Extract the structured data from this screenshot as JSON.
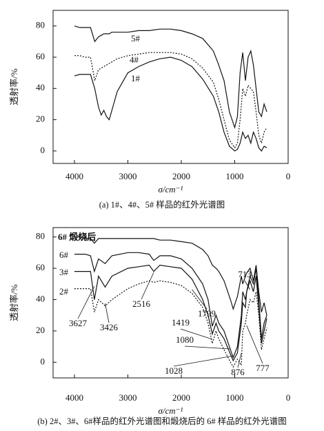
{
  "chart_data": [
    {
      "type": "line",
      "title": "(a) 1#、4#、5# 样品的红外光谱图",
      "x_label": "σ/cm⁻¹",
      "y_label": "透射率/%",
      "xlim": [
        4400,
        0
      ],
      "ylim": [
        -8,
        90
      ],
      "xticks": [
        4000,
        3000,
        2000,
        1000,
        0
      ],
      "yticks": [
        0,
        20,
        40,
        60,
        80
      ],
      "x": [
        4000,
        3900,
        3800,
        3700,
        3620,
        3550,
        3500,
        3450,
        3400,
        3350,
        3300,
        3200,
        3000,
        2800,
        2600,
        2400,
        2200,
        2000,
        1800,
        1600,
        1400,
        1300,
        1200,
        1100,
        1000,
        950,
        900,
        850,
        800,
        750,
        700,
        650,
        600,
        550,
        500,
        450,
        400
      ],
      "series": [
        {
          "name": "5#",
          "color": "#111111",
          "dash": false,
          "values": [
            80,
            79,
            79,
            79,
            70,
            73,
            74,
            75,
            75,
            75,
            76,
            76,
            76,
            77,
            77,
            78,
            78,
            77,
            75,
            72,
            64,
            55,
            45,
            25,
            15,
            22,
            50,
            63,
            45,
            60,
            64,
            55,
            40,
            25,
            22,
            30,
            25
          ]
        },
        {
          "name": "4#",
          "color": "#111111",
          "dash": true,
          "values": [
            61,
            61,
            60,
            60,
            45,
            52,
            53,
            54,
            55,
            56,
            57,
            59,
            61,
            62,
            63,
            63,
            63,
            62,
            59,
            53,
            44,
            33,
            20,
            7,
            2,
            5,
            20,
            40,
            35,
            42,
            40,
            38,
            25,
            10,
            5,
            12,
            15
          ]
        },
        {
          "name": "1#",
          "color": "#111111",
          "dash": false,
          "values": [
            48,
            49,
            49,
            49,
            40,
            28,
            23,
            26,
            22,
            20,
            26,
            38,
            50,
            54,
            57,
            59,
            60,
            58,
            54,
            46,
            35,
            25,
            12,
            3,
            0,
            1,
            5,
            12,
            8,
            10,
            5,
            12,
            8,
            2,
            0,
            3,
            2
          ]
        }
      ]
    },
    {
      "type": "line",
      "title": "(b) 2#、3#、6#样品的红外光谱图和煅烧后的 6# 样品的红外光谱图",
      "x_label": "σ/cm⁻¹",
      "y_label": "透射率/%",
      "xlim": [
        4400,
        0
      ],
      "ylim": [
        -10,
        86
      ],
      "xticks": [
        4000,
        3000,
        2000,
        1000,
        0
      ],
      "yticks": [
        0,
        20,
        40,
        60,
        80
      ],
      "x": [
        4000,
        3900,
        3800,
        3700,
        3627,
        3550,
        3426,
        3300,
        3000,
        2800,
        2600,
        2516,
        2400,
        2200,
        2000,
        1799,
        1600,
        1500,
        1419,
        1350,
        1300,
        1200,
        1080,
        1028,
        950,
        876,
        850,
        800,
        777,
        713,
        650,
        600,
        550,
        500,
        450,
        400
      ],
      "series": [
        {
          "name": "6# 煅烧后",
          "color": "#111111",
          "dash": false,
          "values": [
            80,
            80,
            79,
            79,
            76,
            79,
            79,
            79,
            79,
            79,
            79,
            79,
            78,
            78,
            77,
            76,
            72,
            68,
            62,
            60,
            58,
            52,
            40,
            34,
            42,
            55,
            50,
            55,
            57,
            60,
            52,
            62,
            45,
            32,
            38,
            30
          ]
        },
        {
          "name": "6#",
          "color": "#111111",
          "dash": false,
          "values": [
            69,
            69,
            69,
            68,
            58,
            66,
            63,
            68,
            70,
            70,
            69,
            65,
            68,
            68,
            66,
            60,
            50,
            40,
            23,
            30,
            25,
            20,
            8,
            3,
            10,
            30,
            45,
            40,
            45,
            55,
            50,
            60,
            40,
            15,
            25,
            30
          ]
        },
        {
          "name": "3#",
          "color": "#111111",
          "dash": false,
          "values": [
            58,
            58,
            58,
            58,
            40,
            55,
            48,
            55,
            60,
            61,
            62,
            58,
            62,
            61,
            60,
            53,
            40,
            30,
            18,
            25,
            20,
            15,
            5,
            1,
            6,
            25,
            38,
            35,
            45,
            52,
            45,
            55,
            35,
            12,
            20,
            28
          ]
        },
        {
          "name": "2#",
          "color": "#111111",
          "dash": true,
          "values": [
            47,
            47,
            47,
            47,
            32,
            40,
            36,
            40,
            47,
            50,
            52,
            51,
            52,
            51,
            49,
            44,
            35,
            25,
            12,
            20,
            15,
            8,
            0,
            -3,
            2,
            -2,
            20,
            25,
            30,
            40,
            38,
            45,
            30,
            8,
            15,
            22
          ]
        }
      ],
      "annotations": [
        3627,
        3426,
        2516,
        1799,
        1419,
        1080,
        1028,
        876,
        777,
        713
      ]
    }
  ]
}
